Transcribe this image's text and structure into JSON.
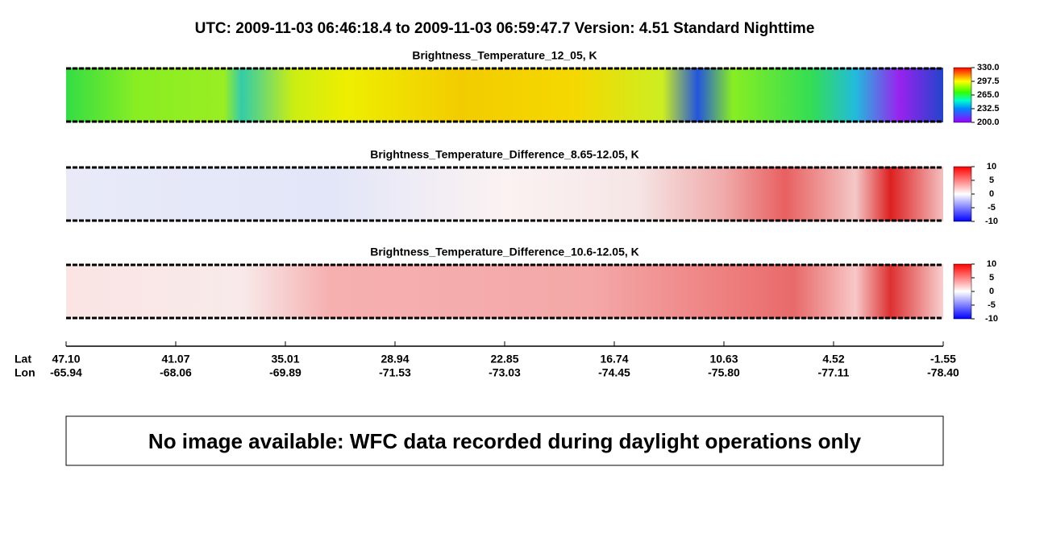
{
  "header": {
    "title": "UTC:  2009-11-03   06:46:18.4  to  2009-11-03   06:59:47.7    Version: 4.51  Standard Nighttime"
  },
  "panels": [
    {
      "title": "Brightness_Temperature_12_05, K",
      "colorbar": {
        "lim": [
          200,
          330
        ],
        "ticks": [
          {
            "value": 200,
            "label": "200.0"
          },
          {
            "value": 232.5,
            "label": "232.5"
          },
          {
            "value": 265,
            "label": "265.0"
          },
          {
            "value": 297.5,
            "label": "297.5"
          },
          {
            "value": 330,
            "label": "330.0"
          }
        ]
      }
    },
    {
      "title": "Brightness_Temperature_Difference_8.65-12.05, K",
      "colorbar": {
        "lim": [
          -10,
          10
        ],
        "ticks": [
          -10,
          -5,
          0,
          5,
          10
        ]
      }
    },
    {
      "title": "Brightness_Temperature_Difference_10.6-12.05, K",
      "colorbar": {
        "lim": [
          -10,
          10
        ],
        "ticks": [
          -10,
          -5,
          0,
          5,
          10
        ]
      }
    }
  ],
  "track_axis": {
    "lat_label": "Lat",
    "lon_label": "Lon",
    "lat": [
      {
        "value": 47.1,
        "label": "47.10"
      },
      41.07,
      35.01,
      28.94,
      22.85,
      16.74,
      10.63,
      4.52,
      -1.55
    ],
    "lon": [
      -65.94,
      -68.06,
      -69.89,
      -71.53,
      -73.03,
      -74.45,
      {
        "value": -75.8,
        "label": "-75.80"
      },
      -77.11,
      {
        "value": -78.4,
        "label": "-78.40"
      }
    ]
  },
  "notice": "No image available: WFC data recorded during daylight operations only"
}
